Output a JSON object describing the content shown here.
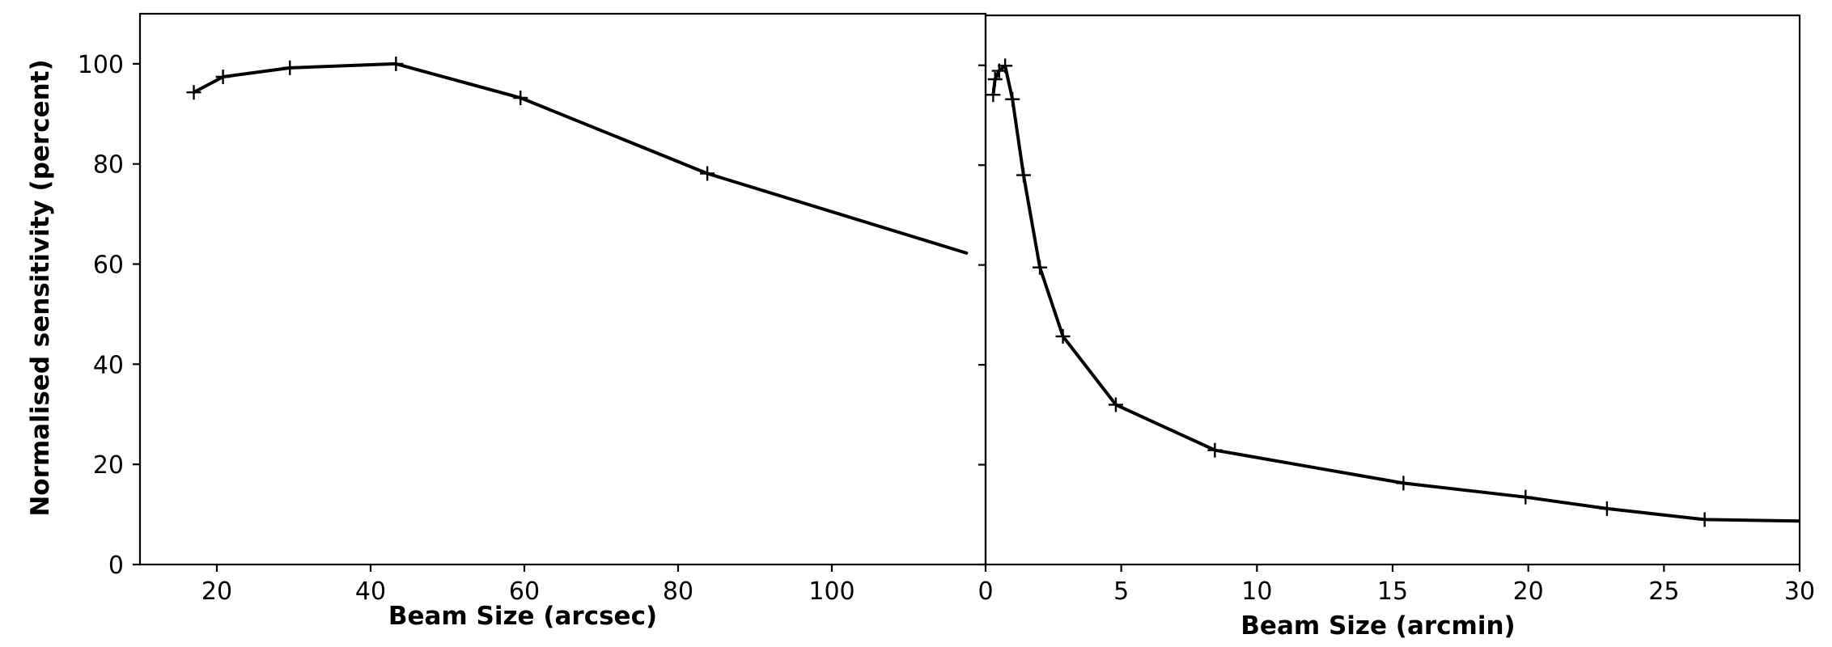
{
  "chart_data": [
    {
      "type": "line",
      "xlabel": "Beam Size (arcsec)",
      "ylabel": "Normalised sensitivity (percent)",
      "xlim": [
        10,
        120
      ],
      "ylim": [
        0,
        110
      ],
      "xticks": [
        20,
        40,
        60,
        80,
        100
      ],
      "yticks": [
        0,
        20,
        40,
        60,
        80,
        100
      ],
      "grid": false,
      "series": [
        {
          "x": [
            17,
            20.8,
            29.5,
            43.3,
            59.5,
            83.8,
            117.5
          ],
          "y": [
            94.3,
            97.4,
            99.2,
            100,
            93.2,
            78.1,
            62.2
          ],
          "markers": [
            true,
            true,
            true,
            true,
            true,
            true,
            false
          ]
        }
      ]
    },
    {
      "type": "line",
      "xlabel": "Beam Size (arcmin)",
      "ylabel": "",
      "xlim": [
        0,
        30
      ],
      "ylim": [
        0,
        110
      ],
      "xticks": [
        0,
        5,
        10,
        15,
        20,
        25,
        30
      ],
      "yticks": [
        0,
        20,
        40,
        60,
        80,
        100
      ],
      "grid": false,
      "series": [
        {
          "x": [
            0.28,
            0.35,
            0.5,
            0.72,
            0.99,
            1.4,
            2.0,
            2.85,
            4.8,
            8.45,
            15.4,
            19.9,
            22.9,
            26.5,
            30
          ],
          "y": [
            94.1,
            97.2,
            98.9,
            99.9,
            93.2,
            78.0,
            59.5,
            45.7,
            32.0,
            22.9,
            16.3,
            13.5,
            11.2,
            9.0,
            8.7
          ],
          "markers": [
            true,
            true,
            true,
            true,
            true,
            true,
            true,
            true,
            true,
            true,
            true,
            true,
            true,
            true,
            false
          ]
        }
      ]
    }
  ]
}
